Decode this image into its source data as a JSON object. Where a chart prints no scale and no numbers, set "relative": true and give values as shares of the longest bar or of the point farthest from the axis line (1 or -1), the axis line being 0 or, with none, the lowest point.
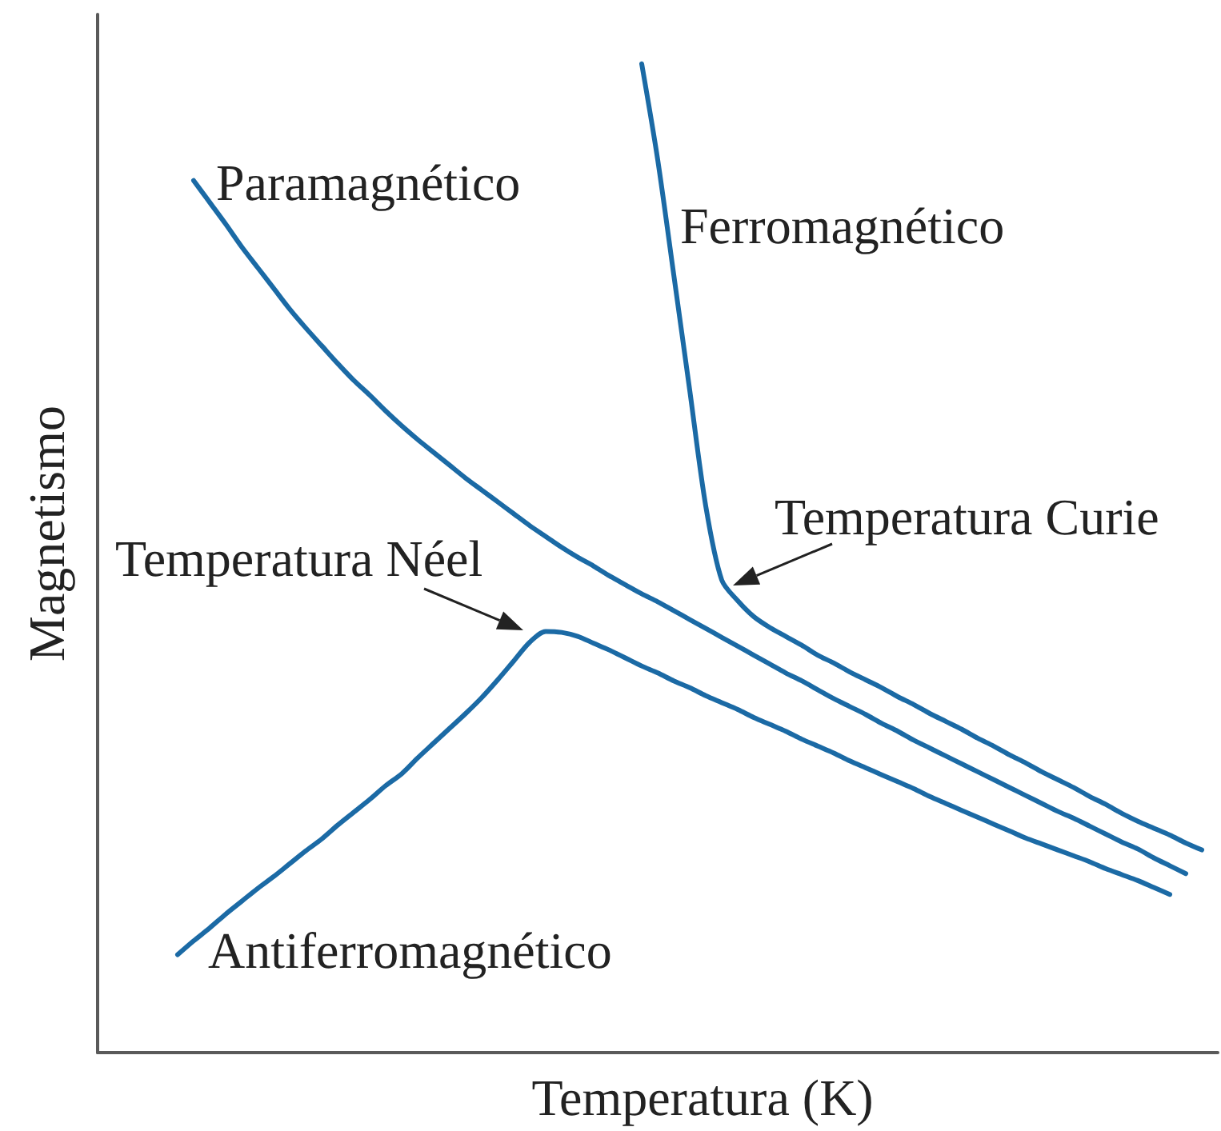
{
  "chart_data": {
    "type": "line",
    "xlabel": "Temperatura (K)",
    "ylabel": "Magnetismo",
    "relative": true,
    "categories": [
      null,
      null,
      null,
      null,
      null,
      null,
      null,
      null,
      null,
      null,
      null,
      null,
      null,
      null,
      null,
      null,
      null,
      null,
      null,
      null,
      null,
      null,
      null,
      null,
      null,
      null,
      null,
      null,
      null,
      null,
      null,
      null,
      null,
      null,
      null,
      null,
      null,
      null,
      null,
      null,
      null,
      null,
      null,
      null,
      null,
      null,
      null,
      null,
      null,
      null,
      null,
      null,
      null,
      null,
      null,
      null,
      null,
      null,
      null,
      null,
      null,
      null,
      null,
      null,
      null,
      null,
      null,
      null,
      null,
      null,
      null
    ],
    "series": [
      {
        "name": "Paramagnético",
        "color": "#1b6aa5",
        "values": [
          null,
          null,
          null,
          null,
          null,
          null,
          0.882,
          0.86,
          0.838,
          0.815,
          0.794,
          0.773,
          0.752,
          0.733,
          0.715,
          0.697,
          0.68,
          0.665,
          0.649,
          0.634,
          0.62,
          0.607,
          0.594,
          0.581,
          0.569,
          0.557,
          0.545,
          0.533,
          0.522,
          0.511,
          0.501,
          0.492,
          0.482,
          0.473,
          0.464,
          0.456,
          0.447,
          0.438,
          0.429,
          0.42,
          0.411,
          0.402,
          0.393,
          0.384,
          0.376,
          0.367,
          0.358,
          0.35,
          0.342,
          0.333,
          0.325,
          0.316,
          0.308,
          0.3,
          0.292,
          0.284,
          0.276,
          0.268,
          0.26,
          0.252,
          0.244,
          0.237,
          0.229,
          0.221,
          0.213,
          0.206,
          0.197,
          0.189,
          0.181,
          null,
          null
        ]
      },
      {
        "name": "Ferromagnético",
        "color": "#1b6aa5",
        "values": [
          null,
          null,
          null,
          null,
          null,
          null,
          null,
          null,
          null,
          null,
          null,
          null,
          null,
          null,
          null,
          null,
          null,
          null,
          null,
          null,
          null,
          null,
          null,
          null,
          null,
          null,
          null,
          null,
          null,
          null,
          null,
          null,
          null,
          null,
          1,
          0.903,
          0.787,
          0.67,
          0.553,
          0.478,
          0.457,
          0.441,
          0.43,
          0.421,
          0.412,
          0.402,
          0.394,
          0.385,
          0.377,
          0.369,
          0.36,
          0.352,
          0.343,
          0.335,
          0.327,
          0.318,
          0.31,
          0.301,
          0.293,
          0.284,
          0.276,
          0.268,
          0.259,
          0.251,
          0.242,
          0.234,
          0.227,
          0.22,
          0.212,
          0.205,
          null
        ]
      },
      {
        "name": "Antiferromagnético",
        "color": "#1b6aa5",
        "values": [
          null,
          null,
          null,
          null,
          null,
          0.099,
          0.113,
          0.126,
          0.14,
          0.153,
          0.166,
          0.178,
          0.191,
          0.204,
          0.216,
          0.23,
          0.243,
          0.256,
          0.27,
          0.282,
          0.298,
          0.313,
          0.328,
          0.343,
          0.359,
          0.377,
          0.396,
          0.415,
          0.426,
          0.425,
          0.421,
          0.414,
          0.407,
          0.399,
          0.391,
          0.384,
          0.376,
          0.369,
          0.361,
          0.354,
          0.347,
          0.339,
          0.332,
          0.325,
          0.317,
          0.31,
          0.303,
          0.295,
          0.288,
          0.281,
          0.274,
          0.267,
          0.259,
          0.252,
          0.245,
          0.238,
          0.231,
          0.224,
          0.217,
          0.211,
          0.205,
          0.199,
          0.193,
          0.186,
          0.18,
          0.174,
          0.167,
          0.16,
          null,
          null,
          null
        ]
      }
    ],
    "annotations": [
      "Temperatura Néel",
      "Temperatura Curie"
    ]
  }
}
